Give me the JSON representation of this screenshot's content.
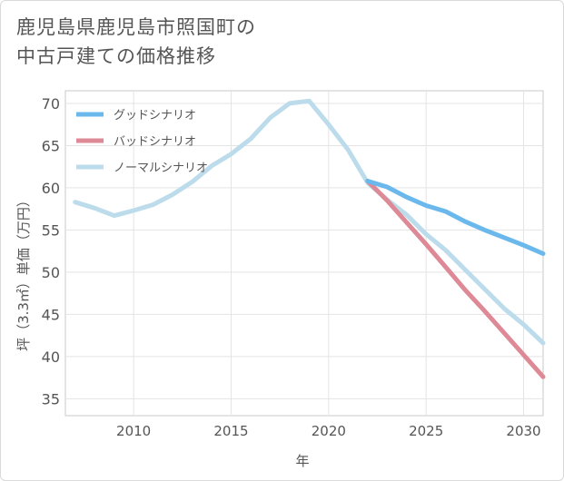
{
  "title": {
    "line1": "鹿児島県鹿児島市照国町の",
    "line2": "中古戸建ての価格推移"
  },
  "chart_data": {
    "type": "line",
    "xlabel": "年",
    "ylabel": "坪（3.3㎡）単価（万円）",
    "xlim": [
      2006.5,
      2031
    ],
    "ylim": [
      33,
      71.5
    ],
    "xticks": [
      2010,
      2015,
      2020,
      2025,
      2030
    ],
    "yticks": [
      35,
      40,
      45,
      50,
      55,
      60,
      65,
      70
    ],
    "grid": true,
    "legend_position": "top-left",
    "series": [
      {
        "name": "グッドシナリオ",
        "color": "#6ab8ec",
        "x": [
          2022,
          2023,
          2024,
          2025,
          2026,
          2027,
          2028,
          2029,
          2030,
          2031
        ],
        "y": [
          60.8,
          60.1,
          58.9,
          57.9,
          57.2,
          56.0,
          55.0,
          54.1,
          53.2,
          52.2
        ]
      },
      {
        "name": "バッドシナリオ",
        "color": "#de8a96",
        "x": [
          2022,
          2023,
          2024,
          2025,
          2026,
          2027,
          2028,
          2029,
          2030,
          2031
        ],
        "y": [
          60.8,
          58.5,
          55.9,
          53.3,
          50.6,
          47.9,
          45.4,
          42.8,
          40.2,
          37.6
        ]
      },
      {
        "name": "ノーマルシナリオ",
        "color": "#bcdcec",
        "x": [
          2007,
          2008,
          2009,
          2010,
          2011,
          2012,
          2013,
          2014,
          2015,
          2016,
          2017,
          2018,
          2019,
          2020,
          2021,
          2022,
          2023,
          2024,
          2025,
          2026,
          2027,
          2028,
          2029,
          2030,
          2031
        ],
        "y": [
          58.3,
          57.6,
          56.7,
          57.3,
          58.0,
          59.2,
          60.7,
          62.6,
          64.0,
          65.8,
          68.3,
          70.0,
          70.3,
          67.5,
          64.5,
          60.6,
          58.6,
          56.8,
          54.5,
          52.6,
          50.3,
          48.0,
          45.7,
          43.8,
          41.6
        ]
      }
    ]
  }
}
